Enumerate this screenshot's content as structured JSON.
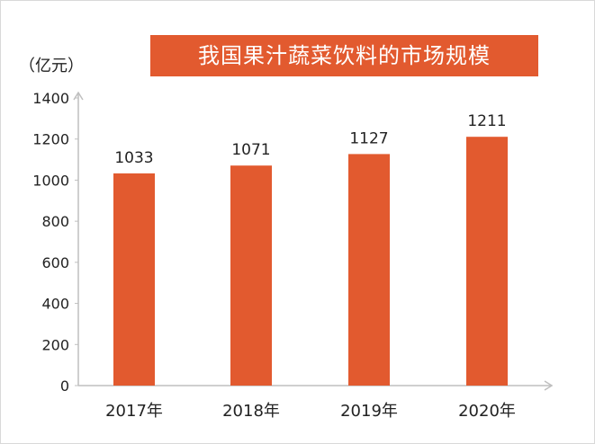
{
  "chart_data": {
    "type": "bar",
    "title": "我国果汁蔬菜饮料的市场规模",
    "ylabel": "（亿元）",
    "xlabel": "",
    "categories": [
      "2017年",
      "2018年",
      "2019年",
      "2020年"
    ],
    "values": [
      1033,
      1071,
      1127,
      1211
    ],
    "ylim": [
      0,
      1400
    ],
    "yticks": [
      0,
      200,
      400,
      600,
      800,
      1000,
      1200,
      1400
    ],
    "grid": false,
    "legend": "none",
    "colors": {
      "bar": "#e25a2f",
      "title_bg": "#e25a2f",
      "axis": "#bfbfbf"
    }
  }
}
